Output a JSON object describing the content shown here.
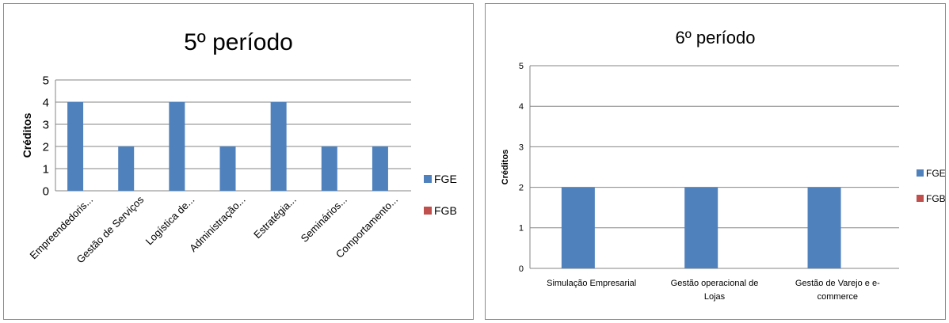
{
  "colors": {
    "fge": "#4f81bd",
    "fgb": "#c0504d",
    "gridline": "#868686",
    "axis": "#868686"
  },
  "chart_data": [
    {
      "type": "bar",
      "title": "5º período",
      "ylabel": "Créditos",
      "xlabel": "",
      "ylim": [
        0,
        5
      ],
      "yticks": [
        "0",
        "1",
        "2",
        "3",
        "4",
        "5"
      ],
      "grid": true,
      "legend_position": "right",
      "categories": [
        "Empreendedoris...",
        "Gestão de Serviços",
        "Logística de...",
        "Administração...",
        "Estratégia...",
        "Seminários...",
        "Comportamento..."
      ],
      "series": [
        {
          "name": "FGE",
          "values": [
            4,
            2,
            4,
            2,
            4,
            2,
            2
          ]
        },
        {
          "name": "FGB",
          "values": [
            0,
            0,
            0,
            0,
            0,
            0,
            0
          ]
        }
      ]
    },
    {
      "type": "bar",
      "title": "6º período",
      "ylabel": "Créditos",
      "xlabel": "",
      "ylim": [
        0,
        5
      ],
      "yticks": [
        "0",
        "1",
        "2",
        "3",
        "4",
        "5"
      ],
      "grid": true,
      "legend_position": "right",
      "categories": [
        "Simulação Empresarial",
        "Gestão operacional de Lojas",
        "Gestão de Varejo e e-commerce"
      ],
      "category_lines": [
        [
          "Simulação Empresarial"
        ],
        [
          "Gestão operacional de",
          "Lojas"
        ],
        [
          "Gestão de Varejo e e-",
          "commerce"
        ]
      ],
      "series": [
        {
          "name": "FGE",
          "values": [
            2,
            2,
            2
          ]
        },
        {
          "name": "FGB",
          "values": [
            0,
            0,
            0
          ]
        }
      ]
    }
  ]
}
